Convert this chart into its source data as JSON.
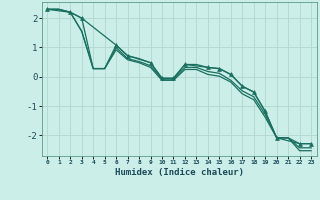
{
  "title": "",
  "xlabel": "Humidex (Indice chaleur)",
  "ylabel": "",
  "background_color": "#cceee8",
  "grid_color": "#b0d8d0",
  "line_color": "#1a7060",
  "xlim": [
    -0.5,
    23.5
  ],
  "ylim": [
    -2.7,
    2.55
  ],
  "yticks": [
    -2,
    -1,
    0,
    1,
    2
  ],
  "xtick_labels": [
    "0",
    "1",
    "2",
    "3",
    "4",
    "5",
    "6",
    "7",
    "8",
    "9",
    "10",
    "11",
    "12",
    "13",
    "14",
    "15",
    "16",
    "17",
    "18",
    "19",
    "20",
    "21",
    "22",
    "23"
  ],
  "series": [
    {
      "x": [
        0,
        1,
        2,
        3,
        4,
        5,
        6,
        7,
        8,
        9,
        10,
        11,
        12,
        13,
        14,
        15,
        16,
        17,
        18,
        19,
        20,
        21,
        22,
        23
      ],
      "y": [
        2.3,
        2.3,
        2.2,
        2.0,
        0.28,
        0.28,
        1.08,
        0.72,
        0.62,
        0.48,
        -0.05,
        -0.05,
        0.42,
        0.42,
        0.32,
        0.28,
        0.08,
        -0.32,
        -0.52,
        -1.18,
        -2.08,
        -2.08,
        -2.28,
        -2.28
      ],
      "marker": false
    },
    {
      "x": [
        0,
        1,
        2,
        3,
        4,
        5,
        6,
        7,
        8,
        9,
        10,
        11,
        12,
        13,
        14,
        15,
        16,
        17,
        18,
        19,
        20,
        21,
        22,
        23
      ],
      "y": [
        2.3,
        2.3,
        2.2,
        1.55,
        0.28,
        0.28,
        1.0,
        0.62,
        0.52,
        0.38,
        -0.08,
        -0.08,
        0.32,
        0.32,
        0.18,
        0.12,
        -0.12,
        -0.48,
        -0.68,
        -1.28,
        -2.08,
        -2.08,
        -2.42,
        -2.42
      ],
      "marker": false
    },
    {
      "x": [
        0,
        1,
        2,
        3,
        4,
        5,
        6,
        7,
        8,
        9,
        10,
        11,
        12,
        13,
        14,
        15,
        16,
        17,
        18,
        19,
        20,
        21,
        22,
        23
      ],
      "y": [
        2.3,
        2.3,
        2.2,
        1.55,
        0.28,
        0.28,
        0.92,
        0.58,
        0.48,
        0.32,
        -0.12,
        -0.12,
        0.25,
        0.25,
        0.08,
        0.02,
        -0.18,
        -0.58,
        -0.78,
        -1.38,
        -2.08,
        -2.08,
        -2.52,
        -2.52
      ],
      "marker": false
    },
    {
      "x": [
        0,
        2,
        3,
        6,
        7,
        9,
        10,
        11,
        12,
        14,
        15,
        16,
        17,
        18,
        19,
        20,
        22,
        23
      ],
      "y": [
        2.3,
        2.2,
        2.0,
        1.08,
        0.72,
        0.48,
        -0.05,
        -0.05,
        0.42,
        0.32,
        0.28,
        0.08,
        -0.32,
        -0.52,
        -1.18,
        -2.08,
        -2.28,
        -2.28
      ],
      "marker": true
    }
  ]
}
